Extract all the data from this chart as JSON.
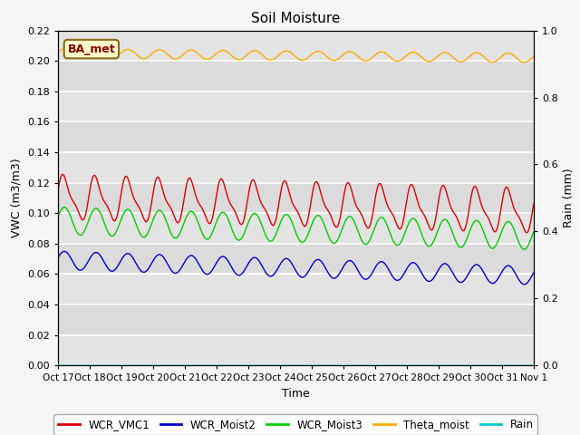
{
  "title": "Soil Moisture",
  "ylabel_left": "VWC (m3/m3)",
  "ylabel_right": "Rain (mm)",
  "xlabel": "Time",
  "ylim_left": [
    0.0,
    0.22
  ],
  "ylim_right": [
    0.0,
    1.0
  ],
  "annotation": "BA_met",
  "bg_color": "#e8e8e8",
  "series": {
    "WCR_VMC1": {
      "color": "#dd0000",
      "base": 0.11,
      "amp": 0.013,
      "trend": -0.009,
      "freq": 1.0,
      "noise": 0.0
    },
    "WCR_Moist2": {
      "color": "#0000cc",
      "base": 0.069,
      "amp": 0.006,
      "trend": -0.01,
      "freq": 1.0,
      "noise": 0.0
    },
    "WCR_Moist3": {
      "color": "#00cc00",
      "base": 0.095,
      "amp": 0.009,
      "trend": -0.01,
      "freq": 1.0,
      "noise": 0.0
    },
    "Theta_moist": {
      "color": "#ffaa00",
      "base": 0.205,
      "amp": 0.003,
      "trend": -0.003,
      "freq": 1.0,
      "noise": 0.0
    },
    "Rain": {
      "color": "#00cccc",
      "base": 0.0,
      "amp": 0.0,
      "trend": 0.0,
      "freq": 0.0,
      "noise": 0.0
    }
  },
  "x_tick_labels": [
    "Oct 17",
    "Oct 18",
    "Oct 19",
    "Oct 20",
    "Oct 21",
    "Oct 22",
    "Oct 23",
    "Oct 24",
    "Oct 25",
    "Oct 26",
    "Oct 27",
    "Oct 28",
    "Oct 29",
    "Oct 30",
    "Oct 31",
    "Nov 1"
  ],
  "n_points": 1440,
  "yticks_left": [
    0.0,
    0.02,
    0.04,
    0.06,
    0.08,
    0.1,
    0.12,
    0.14,
    0.16,
    0.18,
    0.2,
    0.22
  ],
  "yticks_right": [
    0.0,
    0.2,
    0.4,
    0.6,
    0.8,
    1.0
  ],
  "legend_entries": [
    "WCR_VMC1",
    "WCR_Moist2",
    "WCR_Moist3",
    "Theta_moist",
    "Rain"
  ],
  "legend_colors": [
    "#dd0000",
    "#0000cc",
    "#00cc00",
    "#ffaa00",
    "#00cccc"
  ],
  "fig_bg": "#f5f5f5",
  "grid_color": "#ffffff",
  "band_colors": [
    "#e8e8e8",
    "#d8d8d8"
  ]
}
